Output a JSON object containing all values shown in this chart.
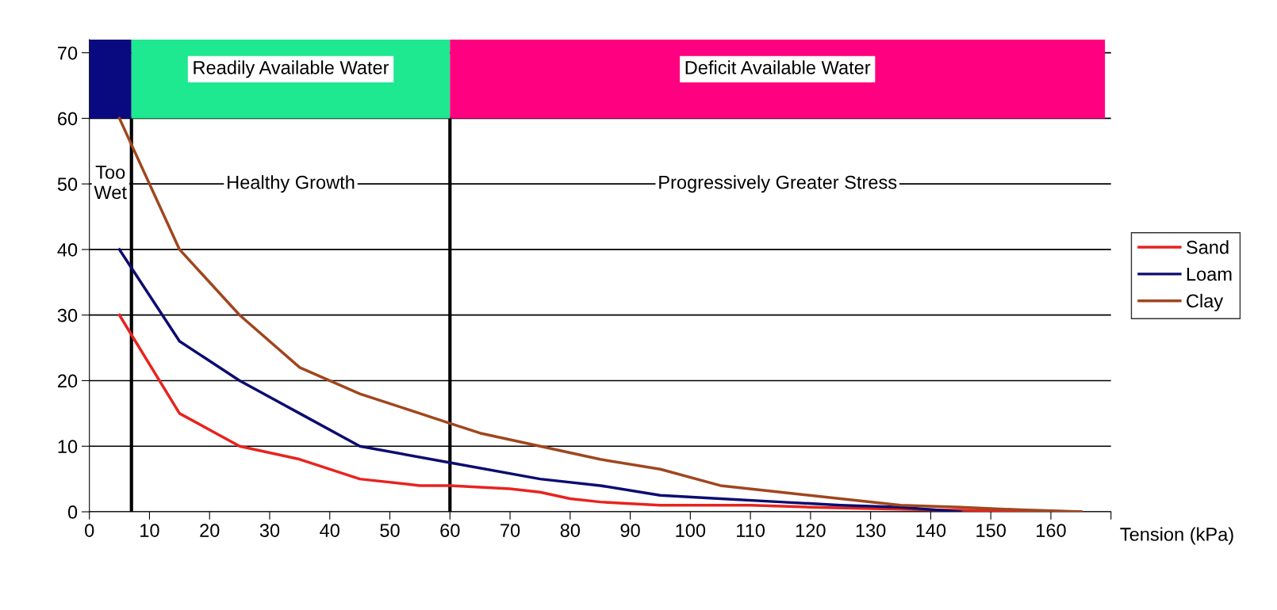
{
  "chart_data": {
    "type": "line",
    "xlabel": "Tension (kPa)",
    "xlim": [
      0,
      170
    ],
    "xticks": [
      0,
      10,
      20,
      30,
      40,
      50,
      60,
      70,
      80,
      90,
      100,
      110,
      120,
      130,
      140,
      150,
      160,
      {
        "value": 170,
        "label": null
      }
    ],
    "ylim": [
      0,
      72
    ],
    "yticks": [
      0,
      10,
      20,
      30,
      40,
      50,
      60,
      70
    ],
    "grid": "y",
    "legend": "right",
    "marker": "none",
    "line_style": "solid",
    "series": [
      {
        "name": "Sand",
        "color": "#e8231e",
        "x": [
          5,
          15,
          25,
          35,
          45,
          55,
          60,
          70,
          75,
          80,
          85,
          95,
          110,
          120,
          130,
          140,
          150,
          165
        ],
        "values": [
          30,
          15,
          10,
          8,
          5,
          4,
          4,
          3.5,
          3,
          2,
          1.5,
          1,
          1,
          0.7,
          0.5,
          0.3,
          0.2,
          0
        ]
      },
      {
        "name": "Loam",
        "color": "#0c0c70",
        "x": [
          5,
          15,
          25,
          35,
          45,
          60,
          75,
          85,
          95,
          105,
          115,
          125,
          135,
          145
        ],
        "values": [
          40,
          26,
          20,
          15,
          10,
          7.5,
          5,
          4,
          2.5,
          2,
          1.5,
          1,
          0.7,
          0
        ]
      },
      {
        "name": "Clay",
        "color": "#a0461e",
        "x": [
          5,
          15,
          25,
          35,
          45,
          55,
          60,
          65,
          75,
          85,
          95,
          105,
          115,
          125,
          135,
          145,
          155,
          165
        ],
        "values": [
          60,
          40,
          30,
          22,
          18,
          15,
          13.5,
          12,
          10,
          8,
          6.5,
          4,
          3,
          2,
          1,
          0.7,
          0.3,
          0
        ]
      }
    ],
    "bands": [
      {
        "axis": "x",
        "from": 0,
        "to": 7,
        "color": "#0a0a80"
      },
      {
        "axis": "x",
        "from": 7,
        "to": 60,
        "color": "#1ee890",
        "label": "Readily Available Water"
      },
      {
        "axis": "x",
        "from": 60,
        "to": 169,
        "color": "#ff0080",
        "label": "Deficit Available Water"
      }
    ],
    "ref_lines": [
      {
        "axis": "x",
        "value": 7,
        "color": "#000000"
      },
      {
        "axis": "x",
        "value": 60,
        "color": "#000000"
      }
    ],
    "annotations": [
      "Too\nWet",
      "Healthy Growth",
      "Progressively Greater Stress"
    ]
  }
}
